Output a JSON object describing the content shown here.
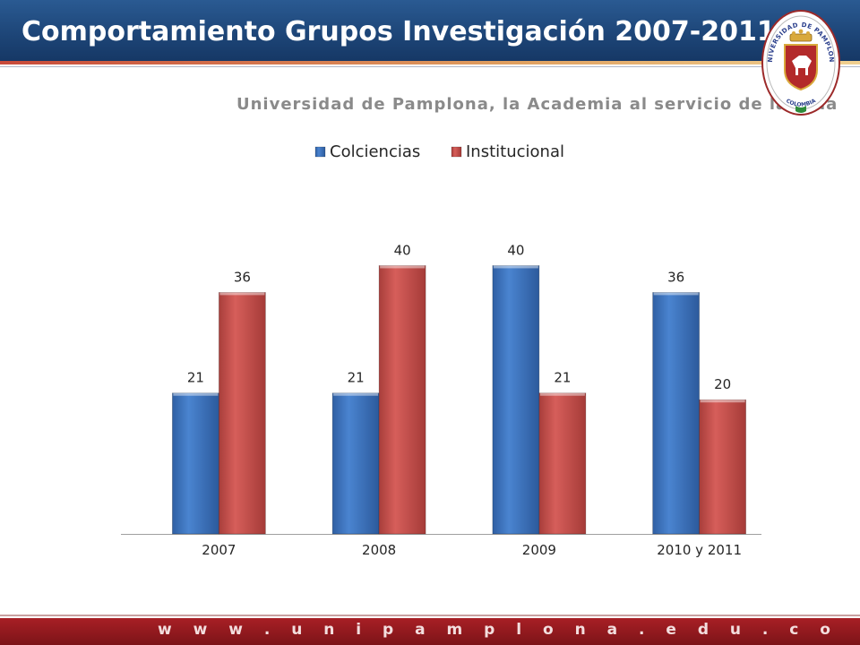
{
  "header": {
    "title": "Comportamiento Grupos Investigación 2007-2011",
    "subtitle": "Universidad de Pamplona, la Academia al servicio de la Vida",
    "seal_text_top": "UNIVERSIDAD DE PAMPLONA",
    "seal_text_bottom": "COLOMBIA"
  },
  "footer": {
    "url": "w w w . u n i p a m p l o n a . e d u . c o"
  },
  "colors": {
    "header_blue": "#1d4577",
    "footer_red": "#8f1a1f",
    "series_blue": "#3f77c2",
    "series_red": "#c9514e"
  },
  "chart_data": {
    "type": "bar",
    "title": "",
    "xlabel": "",
    "ylabel": "",
    "categories": [
      "2007",
      "2008",
      "2009",
      "2010 y 2011"
    ],
    "series": [
      {
        "name": "Colciencias",
        "values": [
          21,
          21,
          40,
          36
        ],
        "color": "#3f77c2"
      },
      {
        "name": "Institucional",
        "values": [
          36,
          40,
          21,
          20
        ],
        "color": "#c9514e"
      }
    ],
    "ylim": [
      0,
      45
    ],
    "grid": false,
    "legend": "top-center",
    "data_labels": true
  }
}
